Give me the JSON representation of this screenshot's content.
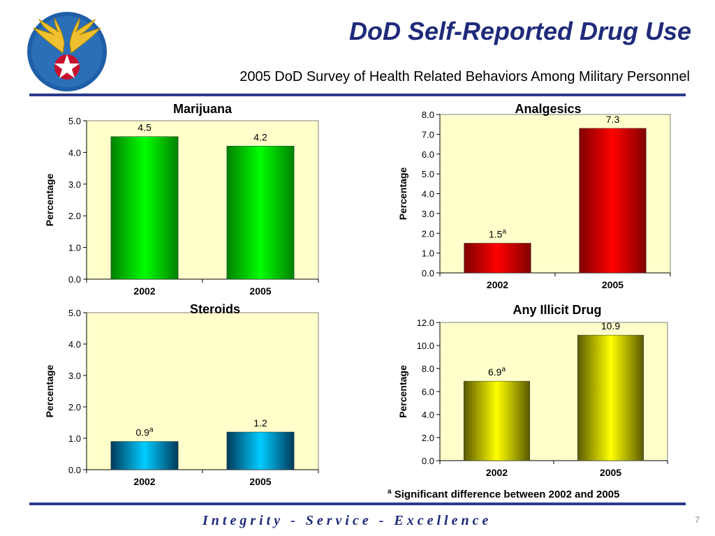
{
  "header": {
    "title": "DoD Self-Reported Drug Use",
    "subtitle": "2005 DoD Survey of Health Related Behaviors Among Military Personnel"
  },
  "footnote": {
    "marker": "a",
    "text": "Significant difference between 2002 and 2005"
  },
  "footer": {
    "tagline": "Integrity - Service - Excellence",
    "page_number": "7"
  },
  "colors": {
    "accent": "#2b3a8c",
    "plot_background": "#ffffcc",
    "title_color": "#1f2a7a"
  },
  "chart_data": [
    {
      "type": "bar",
      "title": "Marijuana",
      "ylabel": "Percentage",
      "categories": [
        "2002",
        "2005"
      ],
      "values": [
        4.5,
        4.2
      ],
      "value_labels": [
        "4.5",
        "4.2"
      ],
      "significance": [
        "",
        ""
      ],
      "ylim": [
        0,
        5
      ],
      "yticks": [
        "0.0",
        "1.0",
        "2.0",
        "3.0",
        "4.0",
        "5.0"
      ],
      "bar_color": "#00ff00",
      "bar_edge": "#008000"
    },
    {
      "type": "bar",
      "title": "Analgesics",
      "ylabel": "Percentage",
      "categories": [
        "2002",
        "2005"
      ],
      "values": [
        1.5,
        7.3
      ],
      "value_labels": [
        "1.5",
        "7.3"
      ],
      "significance": [
        "a",
        ""
      ],
      "ylim": [
        0,
        8
      ],
      "yticks": [
        "0.0",
        "1.0",
        "2.0",
        "3.0",
        "4.0",
        "5.0",
        "6.0",
        "7.0",
        "8.0"
      ],
      "bar_color": "#ff0000",
      "bar_edge": "#800000"
    },
    {
      "type": "bar",
      "title": "Steroids",
      "ylabel": "Percentage",
      "categories": [
        "2002",
        "2005"
      ],
      "values": [
        0.9,
        1.2
      ],
      "value_labels": [
        "0.9",
        "1.2"
      ],
      "significance": [
        "a",
        ""
      ],
      "ylim": [
        0,
        5
      ],
      "yticks": [
        "0.0",
        "1.0",
        "2.0",
        "3.0",
        "4.0",
        "5.0"
      ],
      "bar_color": "#00ccff",
      "bar_edge": "#003a5a"
    },
    {
      "type": "bar",
      "title": "Any Illicit Drug",
      "ylabel": "Percentage",
      "categories": [
        "2002",
        "2005"
      ],
      "values": [
        6.9,
        10.9
      ],
      "value_labels": [
        "6.9",
        "10.9"
      ],
      "significance": [
        "a",
        ""
      ],
      "ylim": [
        0,
        12
      ],
      "yticks": [
        "0.0",
        "2.0",
        "4.0",
        "6.0",
        "8.0",
        "10.0",
        "12.0"
      ],
      "bar_color": "#ffff00",
      "bar_edge": "#5a5a00"
    }
  ]
}
